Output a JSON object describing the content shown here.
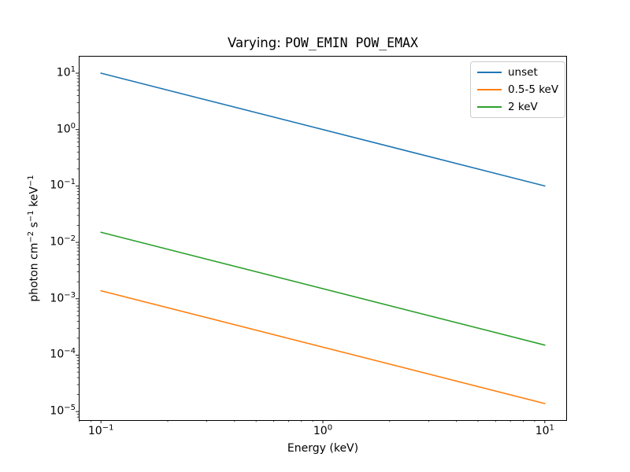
{
  "figure": {
    "title_prefix": "Varying: ",
    "title_code": "POW_EMIN POW_EMAX",
    "ylabel_segments": [
      {
        "text": "photon cm"
      },
      {
        "sup": "−2"
      },
      {
        "text": " s"
      },
      {
        "sup": "−1"
      },
      {
        "text": " keV"
      },
      {
        "sup": "−1"
      }
    ]
  },
  "chart_data": {
    "type": "line",
    "title": "Varying: POW_EMIN POW_EMAX",
    "xlabel": "Energy (keV)",
    "ylabel": "photon cm^-2 s^-1 keV^-1",
    "xscale": "log",
    "yscale": "log",
    "grid": false,
    "x": [
      0.1,
      10
    ],
    "series": [
      {
        "name": "unset",
        "color": "#1f77b4",
        "values": [
          10,
          0.1
        ]
      },
      {
        "name": "0.5-5 keV",
        "color": "#ff7f0e",
        "values": [
          0.001387,
          1.387e-05
        ]
      },
      {
        "name": "2 keV",
        "color": "#2ca02c",
        "values": [
          0.01509,
          0.0001509
        ]
      }
    ],
    "slope_note": "all lines are power laws E^-1 (photon index 1)",
    "x_tick_exponents": [
      -1,
      0,
      1
    ],
    "y_tick_exponents": [
      1,
      0,
      -1,
      -2,
      -3,
      -4,
      -5
    ],
    "xlim": [
      0.0794,
      12.59
    ],
    "ylim": [
      7.06e-06,
      19.63
    ],
    "legend": {
      "position": "upper right",
      "entries": [
        "unset",
        "0.5-5 keV",
        "2 keV"
      ]
    }
  }
}
